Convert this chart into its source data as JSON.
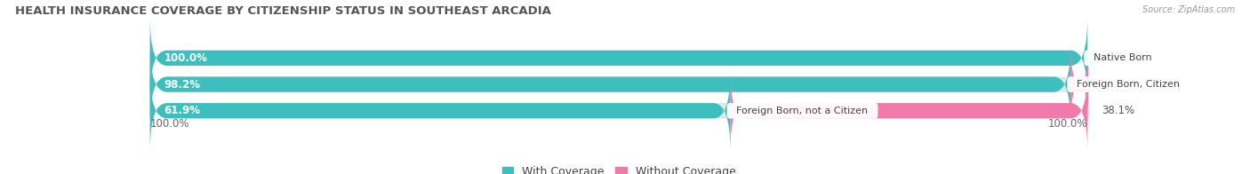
{
  "title": "HEALTH INSURANCE COVERAGE BY CITIZENSHIP STATUS IN SOUTHEAST ARCADIA",
  "source": "Source: ZipAtlas.com",
  "categories": [
    "Native Born",
    "Foreign Born, Citizen",
    "Foreign Born, not a Citizen"
  ],
  "with_coverage": [
    100.0,
    98.2,
    61.9
  ],
  "without_coverage": [
    0.0,
    1.9,
    38.1
  ],
  "color_with": "#3dbfbf",
  "color_with_light": "#a8dede",
  "color_without": "#f07aaa",
  "color_bg_bar": "#e4e4e4",
  "legend_with": "With Coverage",
  "legend_without": "Without Coverage",
  "left_label": "100.0%",
  "right_label": "100.0%",
  "title_fontsize": 9.5,
  "bar_height": 0.58,
  "figsize": [
    14.06,
    1.96
  ],
  "dpi": 100
}
